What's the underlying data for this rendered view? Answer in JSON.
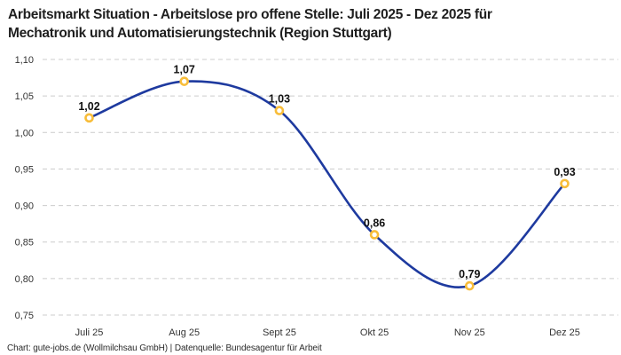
{
  "header": {
    "title_line1": "Arbeitsmarkt Situation - Arbeitslose pro offene Stelle: Juli 2025 - Dez 2025 für",
    "title_line2": "Mechatronik und Automatisierungstechnik (Region Stuttgart)"
  },
  "footer": {
    "credit": "Chart: gute-jobs.de (Wollmilchsau GmbH) | Datenquelle: Bundesagentur für Arbeit"
  },
  "chart_data": {
    "type": "line",
    "title": "Arbeitsmarkt Situation - Arbeitslose pro offene Stelle: Juli 2025 - Dez 2025 für Mechatronik und Automatisierungstechnik (Region Stuttgart)",
    "categories": [
      "Juli 25",
      "Aug 25",
      "Sept 25",
      "Okt 25",
      "Nov 25",
      "Dez 25"
    ],
    "values": [
      1.02,
      1.07,
      1.03,
      0.86,
      0.79,
      0.93
    ],
    "value_labels": [
      "1,02",
      "1,07",
      "1,03",
      "0,86",
      "0,79",
      "0,93"
    ],
    "y_ticks": [
      1.1,
      1.05,
      1.0,
      0.95,
      0.9,
      0.85,
      0.8,
      0.75
    ],
    "y_tick_labels": [
      "1,10",
      "1,05",
      "1,00",
      "0,95",
      "0,90",
      "0,85",
      "0,80",
      "0,75"
    ],
    "ylim": [
      0.75,
      1.1
    ],
    "xlabel": "",
    "ylabel": "",
    "grid": "horizontal-dashed",
    "legend": "none",
    "line_smooth": true,
    "colors": {
      "line": "#1e3a9f",
      "marker_stroke": "#f8bd3a",
      "marker_fill": "#ffffff",
      "grid": "#cccccc",
      "tick_text": "#333333",
      "value_label_text": "#111111"
    }
  }
}
